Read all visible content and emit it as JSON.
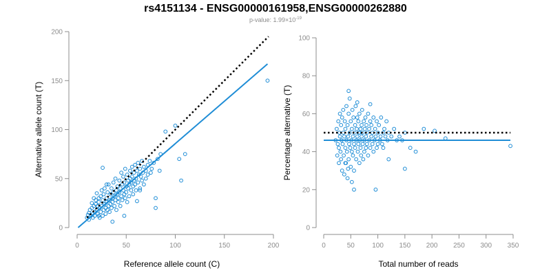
{
  "title": "rs4151134 - ENSG00000161958,ENSG00000262880",
  "subtitle": {
    "prefix": "p-value: 1.99×10",
    "exponent": "-19"
  },
  "colors": {
    "points": "#1f8dd6",
    "fit": "#1f8dd6",
    "reference": "#000000",
    "axis": "#8c8c8c"
  },
  "chart_data": [
    {
      "type": "scatter",
      "name": "allele-counts",
      "xlabel": "Reference allele count (C)",
      "ylabel": "Alternative allele count (T)",
      "xlim": [
        0,
        200
      ],
      "ylim": [
        0,
        200
      ],
      "xticks": [
        0,
        50,
        100,
        150,
        200
      ],
      "yticks": [
        0,
        50,
        100,
        150,
        200
      ],
      "reference_line": {
        "style": "dotted",
        "x": [
          10,
          195
        ],
        "y": [
          10,
          195
        ]
      },
      "fit_line": {
        "style": "solid",
        "x": [
          1,
          194
        ],
        "y": [
          0,
          167
        ]
      },
      "points": [
        [
          10,
          10
        ],
        [
          11,
          13
        ],
        [
          12,
          15
        ],
        [
          12,
          8
        ],
        [
          13,
          18
        ],
        [
          14,
          12
        ],
        [
          15,
          20
        ],
        [
          15,
          25
        ],
        [
          16,
          10
        ],
        [
          16,
          14
        ],
        [
          17,
          22
        ],
        [
          17,
          30
        ],
        [
          18,
          16
        ],
        [
          18,
          12
        ],
        [
          19,
          24
        ],
        [
          19,
          28
        ],
        [
          20,
          18
        ],
        [
          20,
          35
        ],
        [
          21,
          14
        ],
        [
          21,
          22
        ],
        [
          22,
          26
        ],
        [
          22,
          30
        ],
        [
          23,
          10
        ],
        [
          23,
          20
        ],
        [
          24,
          32
        ],
        [
          24,
          16
        ],
        [
          25,
          22
        ],
        [
          25,
          38
        ],
        [
          26,
          28
        ],
        [
          26,
          12
        ],
        [
          27,
          18
        ],
        [
          27,
          34
        ],
        [
          28,
          24
        ],
        [
          28,
          40
        ],
        [
          29,
          20
        ],
        [
          29,
          14
        ],
        [
          30,
          30
        ],
        [
          30,
          26
        ],
        [
          31,
          36
        ],
        [
          31,
          18
        ],
        [
          32,
          22
        ],
        [
          32,
          44
        ],
        [
          33,
          28
        ],
        [
          33,
          16
        ],
        [
          34,
          34
        ],
        [
          34,
          24
        ],
        [
          35,
          40
        ],
        [
          35,
          20
        ],
        [
          36,
          30
        ],
        [
          36,
          26
        ],
        [
          37,
          46
        ],
        [
          37,
          36
        ],
        [
          38,
          22
        ],
        [
          38,
          32
        ],
        [
          39,
          28
        ],
        [
          39,
          50
        ],
        [
          40,
          38
        ],
        [
          40,
          18
        ],
        [
          41,
          34
        ],
        [
          41,
          42
        ],
        [
          42,
          26
        ],
        [
          42,
          30
        ],
        [
          43,
          48
        ],
        [
          43,
          36
        ],
        [
          44,
          40
        ],
        [
          44,
          22
        ],
        [
          45,
          32
        ],
        [
          45,
          56
        ],
        [
          46,
          44
        ],
        [
          46,
          28
        ],
        [
          47,
          38
        ],
        [
          47,
          52
        ],
        [
          48,
          34
        ],
        [
          48,
          46
        ],
        [
          49,
          30
        ],
        [
          49,
          60
        ],
        [
          50,
          42
        ],
        [
          50,
          36
        ],
        [
          51,
          54
        ],
        [
          51,
          26
        ],
        [
          52,
          48
        ],
        [
          52,
          40
        ],
        [
          53,
          44
        ],
        [
          53,
          32
        ],
        [
          54,
          58
        ],
        [
          54,
          50
        ],
        [
          55,
          38
        ],
        [
          55,
          46
        ],
        [
          56,
          62
        ],
        [
          56,
          52
        ],
        [
          57,
          42
        ],
        [
          57,
          34
        ],
        [
          58,
          56
        ],
        [
          58,
          48
        ],
        [
          59,
          64
        ],
        [
          59,
          44
        ],
        [
          60,
          50
        ],
        [
          60,
          38
        ],
        [
          61,
          58
        ],
        [
          62,
          46
        ],
        [
          62,
          66
        ],
        [
          63,
          54
        ],
        [
          64,
          40
        ],
        [
          64,
          60
        ],
        [
          65,
          52
        ],
        [
          66,
          48
        ],
        [
          66,
          68
        ],
        [
          67,
          56
        ],
        [
          68,
          44
        ],
        [
          68,
          62
        ],
        [
          70,
          58
        ],
        [
          70,
          50
        ],
        [
          72,
          64
        ],
        [
          72,
          54
        ],
        [
          74,
          68
        ],
        [
          75,
          56
        ],
        [
          76,
          60
        ],
        [
          78,
          66
        ],
        [
          80,
          20
        ],
        [
          80,
          30
        ],
        [
          82,
          70
        ],
        [
          85,
          75
        ],
        [
          90,
          98
        ],
        [
          100,
          104
        ],
        [
          104,
          70
        ],
        [
          106,
          48
        ],
        [
          110,
          75
        ],
        [
          194,
          150
        ],
        [
          61,
          27
        ],
        [
          48,
          12
        ],
        [
          26,
          61
        ],
        [
          36,
          6
        ],
        [
          64,
          38
        ],
        [
          84,
          58
        ],
        [
          22,
          12
        ],
        [
          30,
          44
        ]
      ]
    },
    {
      "type": "scatter",
      "name": "percentage-alternative",
      "xlabel": "Total number of reads",
      "ylabel": "Percentage alternative (T)",
      "xlim": [
        0,
        350
      ],
      "ylim": [
        0,
        100
      ],
      "xticks": [
        0,
        50,
        100,
        150,
        200,
        250,
        300,
        350
      ],
      "yticks": [
        0,
        20,
        40,
        60,
        80,
        100
      ],
      "reference_line": {
        "style": "dotted",
        "x": [
          0,
          345
        ],
        "y": [
          50,
          50
        ]
      },
      "fit_line": {
        "style": "solid",
        "x": [
          0,
          345
        ],
        "y": [
          46,
          46
        ]
      },
      "points": [
        [
          22,
          46
        ],
        [
          24,
          52
        ],
        [
          25,
          38
        ],
        [
          26,
          44
        ],
        [
          27,
          56
        ],
        [
          28,
          42
        ],
        [
          28,
          34
        ],
        [
          29,
          50
        ],
        [
          30,
          60
        ],
        [
          30,
          48
        ],
        [
          31,
          40
        ],
        [
          32,
          54
        ],
        [
          32,
          36
        ],
        [
          33,
          46
        ],
        [
          34,
          30
        ],
        [
          34,
          58
        ],
        [
          35,
          44
        ],
        [
          36,
          50
        ],
        [
          36,
          62
        ],
        [
          37,
          38
        ],
        [
          38,
          48
        ],
        [
          38,
          28
        ],
        [
          39,
          56
        ],
        [
          40,
          42
        ],
        [
          40,
          52
        ],
        [
          41,
          34
        ],
        [
          42,
          64
        ],
        [
          42,
          46
        ],
        [
          43,
          40
        ],
        [
          44,
          54
        ],
        [
          44,
          26
        ],
        [
          45,
          48
        ],
        [
          46,
          60
        ],
        [
          46,
          36
        ],
        [
          47,
          44
        ],
        [
          48,
          50
        ],
        [
          48,
          68
        ],
        [
          49,
          42
        ],
        [
          50,
          56
        ],
        [
          50,
          32
        ],
        [
          51,
          46
        ],
        [
          52,
          52
        ],
        [
          52,
          40
        ],
        [
          53,
          62
        ],
        [
          54,
          38
        ],
        [
          54,
          48
        ],
        [
          55,
          58
        ],
        [
          56,
          44
        ],
        [
          56,
          30
        ],
        [
          57,
          50
        ],
        [
          58,
          54
        ],
        [
          58,
          42
        ],
        [
          59,
          64
        ],
        [
          60,
          46
        ],
        [
          60,
          36
        ],
        [
          61,
          52
        ],
        [
          62,
          48
        ],
        [
          62,
          58
        ],
        [
          63,
          40
        ],
        [
          64,
          56
        ],
        [
          64,
          44
        ],
        [
          65,
          50
        ],
        [
          66,
          34
        ],
        [
          66,
          60
        ],
        [
          67,
          46
        ],
        [
          68,
          52
        ],
        [
          68,
          42
        ],
        [
          69,
          38
        ],
        [
          70,
          54
        ],
        [
          70,
          48
        ],
        [
          71,
          62
        ],
        [
          72,
          44
        ],
        [
          72,
          50
        ],
        [
          73,
          36
        ],
        [
          74,
          56
        ],
        [
          75,
          46
        ],
        [
          75,
          40
        ],
        [
          76,
          52
        ],
        [
          77,
          58
        ],
        [
          78,
          48
        ],
        [
          78,
          42
        ],
        [
          79,
          54
        ],
        [
          80,
          44
        ],
        [
          80,
          50
        ],
        [
          82,
          60
        ],
        [
          82,
          38
        ],
        [
          84,
          46
        ],
        [
          84,
          52
        ],
        [
          86,
          56
        ],
        [
          86,
          42
        ],
        [
          88,
          48
        ],
        [
          88,
          54
        ],
        [
          90,
          44
        ],
        [
          90,
          50
        ],
        [
          92,
          58
        ],
        [
          92,
          40
        ],
        [
          94,
          46
        ],
        [
          95,
          52
        ],
        [
          96,
          48
        ],
        [
          98,
          42
        ],
        [
          98,
          56
        ],
        [
          100,
          50
        ],
        [
          100,
          44
        ],
        [
          102,
          54
        ],
        [
          104,
          46
        ],
        [
          105,
          48
        ],
        [
          106,
          58
        ],
        [
          108,
          44
        ],
        [
          110,
          50
        ],
        [
          110,
          42
        ],
        [
          112,
          52
        ],
        [
          114,
          48
        ],
        [
          116,
          56
        ],
        [
          118,
          46
        ],
        [
          120,
          50
        ],
        [
          120,
          36
        ],
        [
          125,
          48
        ],
        [
          130,
          52
        ],
        [
          135,
          46
        ],
        [
          140,
          48
        ],
        [
          145,
          46
        ],
        [
          150,
          31
        ],
        [
          150,
          50
        ],
        [
          160,
          42
        ],
        [
          170,
          40
        ],
        [
          185,
          52
        ],
        [
          205,
          51
        ],
        [
          225,
          47
        ],
        [
          345,
          43
        ],
        [
          46,
          72
        ],
        [
          66,
          50
        ],
        [
          96,
          20
        ],
        [
          56,
          20
        ],
        [
          52,
          24
        ],
        [
          62,
          66
        ],
        [
          86,
          65
        ],
        [
          40,
          34
        ],
        [
          45,
          31
        ]
      ]
    }
  ]
}
